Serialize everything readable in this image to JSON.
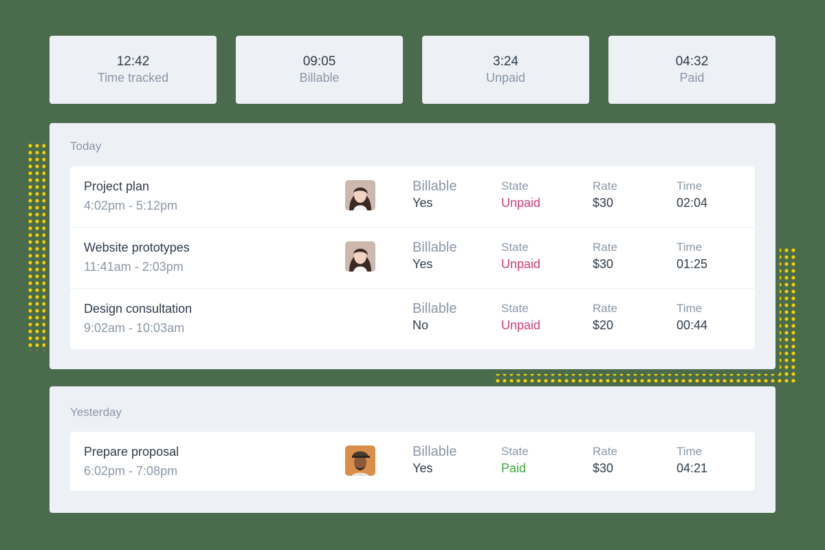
{
  "stats": [
    {
      "value": "12:42",
      "label": "Time tracked"
    },
    {
      "value": "09:05",
      "label": "Billable"
    },
    {
      "value": "3:24",
      "label": "Unpaid"
    },
    {
      "value": "04:32",
      "label": "Paid"
    }
  ],
  "column_labels": {
    "billable": "Billable",
    "state": "State",
    "rate": "Rate",
    "time": "Time"
  },
  "today": {
    "title": "Today",
    "entries": [
      {
        "name": "Project plan",
        "range": "4:02pm - 5:12pm",
        "billable": "Yes",
        "state": "Unpaid",
        "rate": "$30",
        "time": "02:04"
      },
      {
        "name": "Website prototypes",
        "range": "11:41am - 2:03pm",
        "billable": "Yes",
        "state": "Unpaid",
        "rate": "$30",
        "time": "01:25"
      },
      {
        "name": "Design consultation",
        "range": "9:02am - 10:03am",
        "billable": "No",
        "state": "Unpaid",
        "rate": "$20",
        "time": "00:44"
      }
    ]
  },
  "yesterday": {
    "title": "Yesterday",
    "entries": [
      {
        "name": "Prepare proposal",
        "range": "6:02pm - 7:08pm",
        "billable": "Yes",
        "state": "Paid",
        "rate": "$30",
        "time": "04:21"
      }
    ]
  },
  "colors": {
    "background": "#4a6b4c",
    "unpaid": "#d23b74",
    "paid": "#3caa3c",
    "accent_dots": "#f5d000"
  },
  "icons": [
    "avatar-woman",
    "avatar-woman",
    "avatar-man"
  ]
}
